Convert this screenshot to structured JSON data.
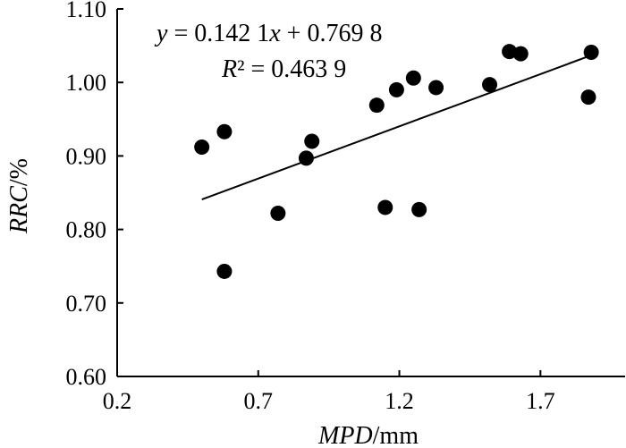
{
  "chart_data": {
    "type": "scatter",
    "title": "",
    "xlabel": {
      "italic": "MPD",
      "plain": "/mm"
    },
    "ylabel": {
      "italic": "RRC",
      "plain": "/%"
    },
    "xlim": [
      0.2,
      2.0
    ],
    "ylim": [
      0.6,
      1.1
    ],
    "x_ticks": [
      0.2,
      0.7,
      1.2,
      1.7
    ],
    "x_tick_labels": [
      "0.2",
      "0.7",
      "1.2",
      "1.7"
    ],
    "y_ticks": [
      0.6,
      0.7,
      0.8,
      0.9,
      1.0,
      1.1
    ],
    "y_tick_labels": [
      "0.60",
      "0.70",
      "0.80",
      "0.90",
      "1.00",
      "1.10"
    ],
    "grid": false,
    "points": [
      {
        "x": 0.5,
        "y": 0.912
      },
      {
        "x": 0.58,
        "y": 0.933
      },
      {
        "x": 0.58,
        "y": 0.743
      },
      {
        "x": 0.77,
        "y": 0.822
      },
      {
        "x": 0.87,
        "y": 0.897
      },
      {
        "x": 0.89,
        "y": 0.92
      },
      {
        "x": 1.12,
        "y": 0.969
      },
      {
        "x": 1.15,
        "y": 0.83
      },
      {
        "x": 1.19,
        "y": 0.99
      },
      {
        "x": 1.25,
        "y": 1.006
      },
      {
        "x": 1.27,
        "y": 0.827
      },
      {
        "x": 1.33,
        "y": 0.993
      },
      {
        "x": 1.52,
        "y": 0.997
      },
      {
        "x": 1.59,
        "y": 1.042
      },
      {
        "x": 1.63,
        "y": 1.039
      },
      {
        "x": 1.87,
        "y": 0.98
      },
      {
        "x": 1.88,
        "y": 1.041
      }
    ],
    "trendline": {
      "slope": 0.1421,
      "intercept": 0.7698,
      "x_start": 0.5,
      "x_end": 1.88
    },
    "annotations": {
      "equation": {
        "y_var": "y",
        "eq_left": " = 0.142 1",
        "x_var": "x",
        "eq_right": " + 0.769 8"
      },
      "r_squared": {
        "r_var": "R",
        "rest": "² = 0.463 9"
      }
    }
  }
}
